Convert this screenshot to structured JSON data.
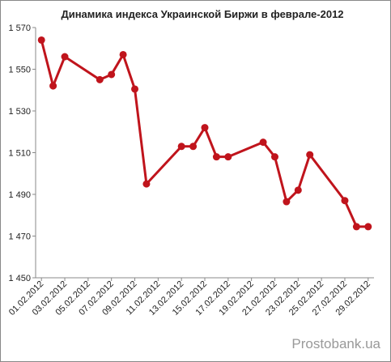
{
  "chart_data": {
    "type": "line",
    "title": "Динамика индекса Украинской Биржи в феврале-2012",
    "watermark": "Prostobank.ua",
    "color": "#c0141c",
    "x": [
      "01.02.2012",
      "02.02.2012",
      "03.02.2012",
      "06.02.2012",
      "07.02.2012",
      "08.02.2012",
      "09.02.2012",
      "10.02.2012",
      "13.02.2012",
      "14.02.2012",
      "15.02.2012",
      "16.02.2012",
      "17.02.2012",
      "20.02.2012",
      "21.02.2012",
      "22.02.2012",
      "23.02.2012",
      "24.02.2012",
      "27.02.2012",
      "28.02.2012",
      "29.02.2012"
    ],
    "values": [
      1564,
      1542,
      1556,
      1545,
      1547.5,
      1557,
      1540.5,
      1495,
      1513,
      1513,
      1522,
      1508,
      1508,
      1515,
      1508,
      1486.5,
      1492,
      1509,
      1487,
      1474.5,
      1474.5
    ],
    "xticks": [
      "01.02.2012",
      "03.02.2012",
      "05.02.2012",
      "07.02.2012",
      "09.02.2012",
      "11.02.2012",
      "13.02.2012",
      "15.02.2012",
      "17.02.2012",
      "19.02.2012",
      "21.02.2012",
      "23.02.2012",
      "25.02.2012",
      "27.02.2012",
      "29.02.2012"
    ],
    "ylim": [
      1450,
      1570
    ],
    "yticks": [
      {
        "value": 1450,
        "label": "1 450"
      },
      {
        "value": 1470,
        "label": "1 470"
      },
      {
        "value": 1490,
        "label": "1 490"
      },
      {
        "value": 1510,
        "label": "1 510"
      },
      {
        "value": 1530,
        "label": "1 530"
      },
      {
        "value": 1550,
        "label": "1 550"
      },
      {
        "value": 1570,
        "label": "1 570"
      }
    ]
  }
}
